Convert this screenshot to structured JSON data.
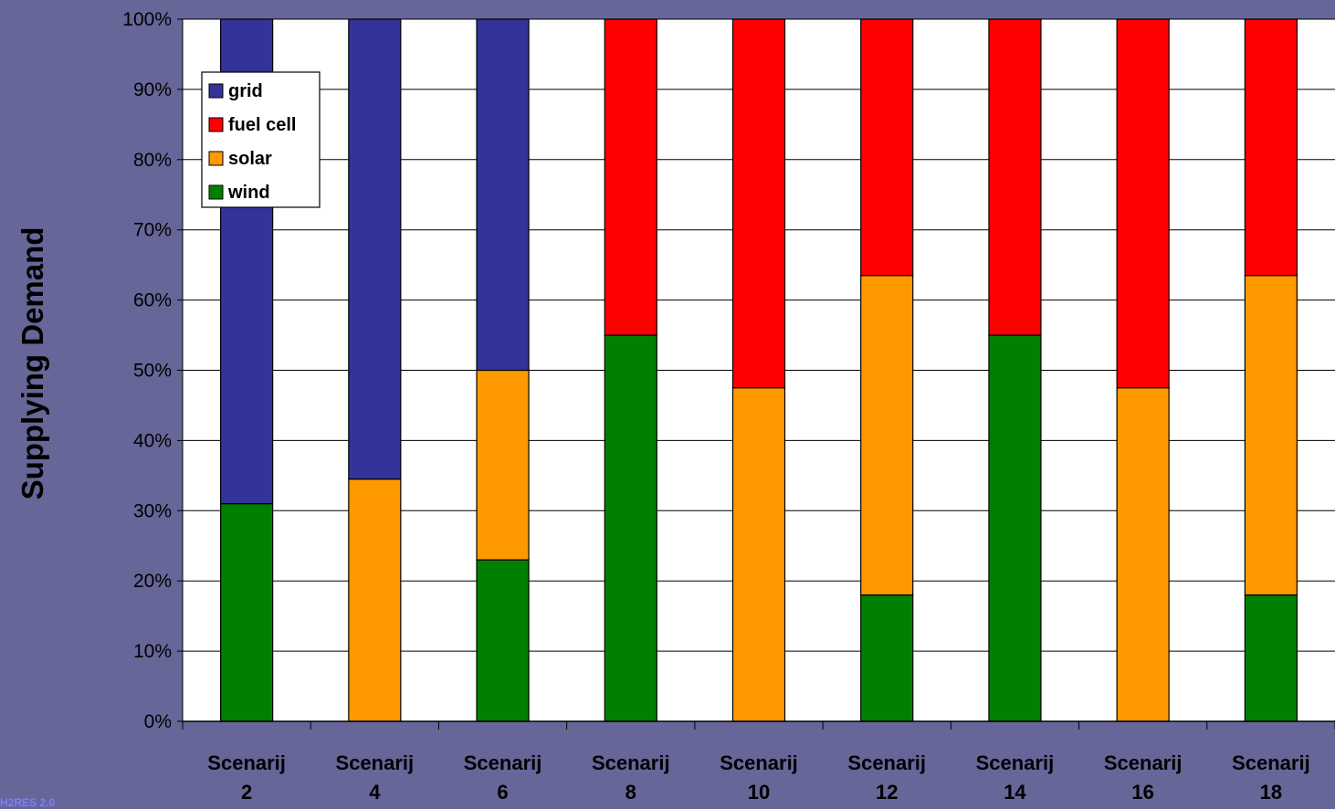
{
  "chart_data": {
    "type": "bar",
    "stacked": true,
    "percent_stacked": true,
    "categories": [
      "Scenarij 2",
      "Scenarij 4",
      "Scenarij 6",
      "Scenarij 8",
      "Scenarij 10",
      "Scenarij 12",
      "Scenarij 14",
      "Scenarij 16",
      "Scenarij 18"
    ],
    "series": [
      {
        "name": "wind",
        "color": "#008000",
        "values": [
          31,
          0,
          23,
          55,
          0,
          18,
          55,
          0,
          18
        ]
      },
      {
        "name": "solar",
        "color": "#ff9900",
        "values": [
          0,
          34.5,
          27,
          0,
          47.5,
          45.5,
          0,
          47.5,
          45.5
        ]
      },
      {
        "name": "fuel cell",
        "color": "#ff0000",
        "values": [
          0,
          0,
          0,
          45,
          52.5,
          36.5,
          45,
          52.5,
          36.5
        ]
      },
      {
        "name": "grid",
        "color": "#333399",
        "values": [
          69,
          65.5,
          50,
          0,
          0,
          0,
          0,
          0,
          0
        ]
      }
    ],
    "ylabel": "Supplying Demand",
    "xlabel": "",
    "title": "",
    "ylim": [
      0,
      100
    ],
    "y_ticks": [
      "0%",
      "10%",
      "20%",
      "30%",
      "40%",
      "50%",
      "60%",
      "70%",
      "80%",
      "90%",
      "100%"
    ],
    "grid": true,
    "legend": {
      "position": "top-left",
      "order": [
        "grid",
        "fuel cell",
        "solar",
        "wind"
      ]
    },
    "plot_background": "#ffffff",
    "page_background": "#666699"
  },
  "watermark_text": "H2RES 2.0"
}
